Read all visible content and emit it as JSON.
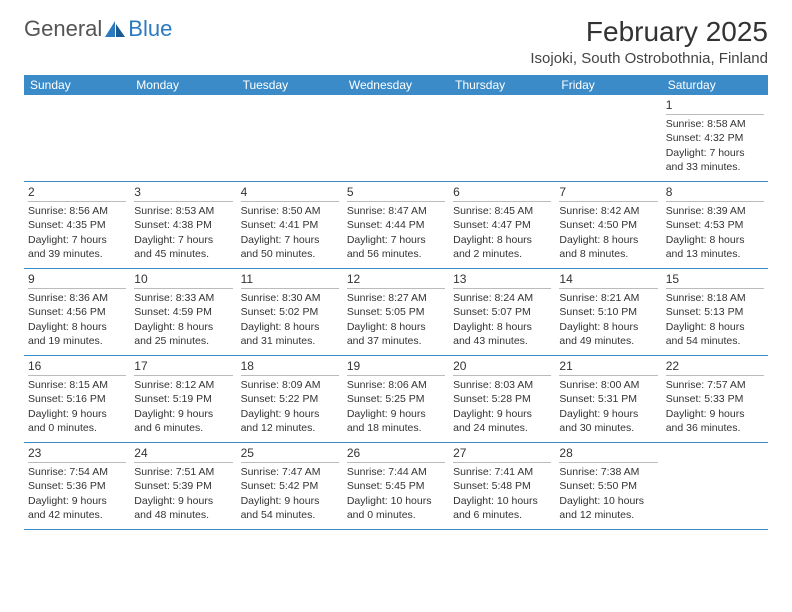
{
  "logo": {
    "part1": "General",
    "part2": "Blue"
  },
  "title": "February 2025",
  "location": "Isojoki, South Ostrobothnia, Finland",
  "colors": {
    "header_bar": "#3b8bc9",
    "accent": "#2b7ac0",
    "text": "#333333",
    "rule": "#3b8bc9"
  },
  "fonts": {
    "base_family": "Arial",
    "title_size": 28,
    "location_size": 15,
    "cell_size": 10.5
  },
  "weekdays": [
    "Sunday",
    "Monday",
    "Tuesday",
    "Wednesday",
    "Thursday",
    "Friday",
    "Saturday"
  ],
  "weeks": [
    [
      null,
      null,
      null,
      null,
      null,
      null,
      {
        "n": "1",
        "sunrise": "8:58 AM",
        "sunset": "4:32 PM",
        "day_h": "7",
        "day_m": "33"
      }
    ],
    [
      {
        "n": "2",
        "sunrise": "8:56 AM",
        "sunset": "4:35 PM",
        "day_h": "7",
        "day_m": "39"
      },
      {
        "n": "3",
        "sunrise": "8:53 AM",
        "sunset": "4:38 PM",
        "day_h": "7",
        "day_m": "45"
      },
      {
        "n": "4",
        "sunrise": "8:50 AM",
        "sunset": "4:41 PM",
        "day_h": "7",
        "day_m": "50"
      },
      {
        "n": "5",
        "sunrise": "8:47 AM",
        "sunset": "4:44 PM",
        "day_h": "7",
        "day_m": "56"
      },
      {
        "n": "6",
        "sunrise": "8:45 AM",
        "sunset": "4:47 PM",
        "day_h": "8",
        "day_m": "2"
      },
      {
        "n": "7",
        "sunrise": "8:42 AM",
        "sunset": "4:50 PM",
        "day_h": "8",
        "day_m": "8"
      },
      {
        "n": "8",
        "sunrise": "8:39 AM",
        "sunset": "4:53 PM",
        "day_h": "8",
        "day_m": "13"
      }
    ],
    [
      {
        "n": "9",
        "sunrise": "8:36 AM",
        "sunset": "4:56 PM",
        "day_h": "8",
        "day_m": "19"
      },
      {
        "n": "10",
        "sunrise": "8:33 AM",
        "sunset": "4:59 PM",
        "day_h": "8",
        "day_m": "25"
      },
      {
        "n": "11",
        "sunrise": "8:30 AM",
        "sunset": "5:02 PM",
        "day_h": "8",
        "day_m": "31"
      },
      {
        "n": "12",
        "sunrise": "8:27 AM",
        "sunset": "5:05 PM",
        "day_h": "8",
        "day_m": "37"
      },
      {
        "n": "13",
        "sunrise": "8:24 AM",
        "sunset": "5:07 PM",
        "day_h": "8",
        "day_m": "43"
      },
      {
        "n": "14",
        "sunrise": "8:21 AM",
        "sunset": "5:10 PM",
        "day_h": "8",
        "day_m": "49"
      },
      {
        "n": "15",
        "sunrise": "8:18 AM",
        "sunset": "5:13 PM",
        "day_h": "8",
        "day_m": "54"
      }
    ],
    [
      {
        "n": "16",
        "sunrise": "8:15 AM",
        "sunset": "5:16 PM",
        "day_h": "9",
        "day_m": "0"
      },
      {
        "n": "17",
        "sunrise": "8:12 AM",
        "sunset": "5:19 PM",
        "day_h": "9",
        "day_m": "6"
      },
      {
        "n": "18",
        "sunrise": "8:09 AM",
        "sunset": "5:22 PM",
        "day_h": "9",
        "day_m": "12"
      },
      {
        "n": "19",
        "sunrise": "8:06 AM",
        "sunset": "5:25 PM",
        "day_h": "9",
        "day_m": "18"
      },
      {
        "n": "20",
        "sunrise": "8:03 AM",
        "sunset": "5:28 PM",
        "day_h": "9",
        "day_m": "24"
      },
      {
        "n": "21",
        "sunrise": "8:00 AM",
        "sunset": "5:31 PM",
        "day_h": "9",
        "day_m": "30"
      },
      {
        "n": "22",
        "sunrise": "7:57 AM",
        "sunset": "5:33 PM",
        "day_h": "9",
        "day_m": "36"
      }
    ],
    [
      {
        "n": "23",
        "sunrise": "7:54 AM",
        "sunset": "5:36 PM",
        "day_h": "9",
        "day_m": "42"
      },
      {
        "n": "24",
        "sunrise": "7:51 AM",
        "sunset": "5:39 PM",
        "day_h": "9",
        "day_m": "48"
      },
      {
        "n": "25",
        "sunrise": "7:47 AM",
        "sunset": "5:42 PM",
        "day_h": "9",
        "day_m": "54"
      },
      {
        "n": "26",
        "sunrise": "7:44 AM",
        "sunset": "5:45 PM",
        "day_h": "10",
        "day_m": "0"
      },
      {
        "n": "27",
        "sunrise": "7:41 AM",
        "sunset": "5:48 PM",
        "day_h": "10",
        "day_m": "6"
      },
      {
        "n": "28",
        "sunrise": "7:38 AM",
        "sunset": "5:50 PM",
        "day_h": "10",
        "day_m": "12"
      },
      null
    ]
  ]
}
